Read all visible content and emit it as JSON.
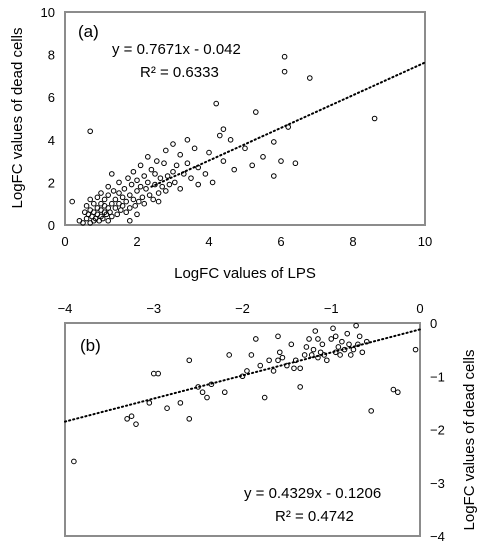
{
  "chart_data": [
    {
      "panel": "(a)",
      "type": "scatter",
      "xlabel": "LogFC values of LPS",
      "ylabel": "LogFC values of dead cells",
      "xlim": [
        0,
        10
      ],
      "ylim": [
        0,
        10
      ],
      "xticks": [
        0,
        2,
        4,
        6,
        8,
        10
      ],
      "yticks": [
        0,
        2,
        4,
        6,
        8,
        10
      ],
      "grid": false,
      "x_axis_position": "bottom",
      "y_axis_position": "left",
      "trendline": {
        "slope": 0.7671,
        "intercept": -0.042,
        "style": "dotted"
      },
      "equation": "y = 0.7671x - 0.042",
      "r_squared": "R² = 0.6333",
      "points": [
        [
          0.2,
          1.1
        ],
        [
          0.4,
          0.2
        ],
        [
          0.5,
          0.1
        ],
        [
          0.55,
          0.6
        ],
        [
          0.6,
          0.3
        ],
        [
          0.6,
          0.9
        ],
        [
          0.65,
          0.5
        ],
        [
          0.7,
          0.1
        ],
        [
          0.7,
          0.7
        ],
        [
          0.7,
          1.2
        ],
        [
          0.75,
          0.4
        ],
        [
          0.8,
          0.2
        ],
        [
          0.8,
          0.6
        ],
        [
          0.8,
          1.0
        ],
        [
          0.85,
          0.3
        ],
        [
          0.9,
          0.5
        ],
        [
          0.9,
          0.8
        ],
        [
          0.9,
          1.3
        ],
        [
          0.95,
          0.2
        ],
        [
          1.0,
          0.4
        ],
        [
          1.0,
          0.7
        ],
        [
          1.0,
          1.0
        ],
        [
          1.0,
          1.5
        ],
        [
          1.05,
          0.3
        ],
        [
          1.1,
          0.6
        ],
        [
          1.1,
          0.9
        ],
        [
          1.1,
          1.2
        ],
        [
          1.15,
          0.5
        ],
        [
          1.2,
          0.2
        ],
        [
          1.2,
          0.8
        ],
        [
          1.2,
          1.4
        ],
        [
          1.2,
          1.8
        ],
        [
          1.25,
          0.6
        ],
        [
          1.3,
          1.0
        ],
        [
          1.3,
          0.4
        ],
        [
          1.35,
          1.6
        ],
        [
          1.4,
          0.8
        ],
        [
          1.4,
          1.2
        ],
        [
          1.45,
          0.5
        ],
        [
          1.5,
          1.0
        ],
        [
          1.5,
          1.5
        ],
        [
          1.5,
          2.0
        ],
        [
          1.55,
          0.7
        ],
        [
          1.6,
          1.3
        ],
        [
          1.6,
          0.9
        ],
        [
          1.65,
          1.7
        ],
        [
          1.7,
          1.1
        ],
        [
          1.7,
          0.6
        ],
        [
          1.75,
          2.2
        ],
        [
          1.8,
          1.4
        ],
        [
          1.8,
          0.8
        ],
        [
          1.85,
          1.9
        ],
        [
          1.9,
          1.2
        ],
        [
          1.9,
          2.5
        ],
        [
          1.95,
          0.9
        ],
        [
          2.0,
          1.6
        ],
        [
          2.0,
          2.1
        ],
        [
          2.05,
          1.1
        ],
        [
          2.1,
          1.8
        ],
        [
          2.1,
          2.8
        ],
        [
          2.15,
          1.3
        ],
        [
          2.2,
          2.3
        ],
        [
          2.2,
          1.0
        ],
        [
          2.25,
          1.7
        ],
        [
          2.3,
          2.0
        ],
        [
          2.3,
          3.2
        ],
        [
          2.35,
          1.4
        ],
        [
          2.4,
          2.6
        ],
        [
          2.45,
          1.2
        ],
        [
          2.5,
          1.9
        ],
        [
          2.5,
          2.4
        ],
        [
          2.55,
          3.0
        ],
        [
          2.6,
          1.5
        ],
        [
          2.65,
          2.2
        ],
        [
          2.7,
          1.8
        ],
        [
          2.75,
          2.9
        ],
        [
          2.8,
          1.6
        ],
        [
          2.8,
          3.5
        ],
        [
          2.85,
          2.3
        ],
        [
          2.9,
          1.9
        ],
        [
          3.0,
          2.5
        ],
        [
          3.0,
          3.8
        ],
        [
          3.05,
          2.0
        ],
        [
          3.1,
          2.8
        ],
        [
          3.2,
          1.7
        ],
        [
          3.2,
          3.3
        ],
        [
          3.3,
          2.4
        ],
        [
          3.4,
          2.9
        ],
        [
          3.5,
          2.2
        ],
        [
          3.6,
          3.6
        ],
        [
          3.7,
          2.7
        ],
        [
          3.9,
          2.4
        ],
        [
          4.0,
          3.4
        ],
        [
          4.1,
          2.0
        ],
        [
          4.2,
          5.7
        ],
        [
          4.3,
          4.2
        ],
        [
          4.4,
          3.0
        ],
        [
          4.6,
          4.0
        ],
        [
          4.7,
          2.6
        ],
        [
          5.0,
          3.6
        ],
        [
          5.2,
          2.8
        ],
        [
          5.3,
          5.3
        ],
        [
          5.5,
          3.2
        ],
        [
          5.8,
          3.9
        ],
        [
          6.0,
          3.0
        ],
        [
          6.1,
          7.9
        ],
        [
          6.1,
          7.2
        ],
        [
          6.2,
          4.6
        ],
        [
          6.4,
          2.9
        ],
        [
          6.8,
          6.9
        ],
        [
          8.6,
          5.0
        ],
        [
          0.7,
          4.4
        ],
        [
          1.8,
          0.2
        ],
        [
          2.0,
          0.5
        ],
        [
          3.4,
          4.0
        ],
        [
          4.4,
          4.5
        ],
        [
          5.8,
          2.3
        ],
        [
          1.3,
          2.4
        ],
        [
          2.6,
          1.1
        ],
        [
          3.7,
          1.9
        ]
      ]
    },
    {
      "panel": "(b)",
      "type": "scatter",
      "xlabel": "",
      "ylabel": "LogFC values of dead cells",
      "xlim": [
        -4,
        0
      ],
      "ylim": [
        -4,
        0
      ],
      "xticks": [
        -4,
        -3,
        -2,
        -1,
        0
      ],
      "yticks": [
        -4,
        -3,
        -2,
        -1,
        0
      ],
      "grid": false,
      "x_axis_position": "top",
      "y_axis_position": "right",
      "trendline": {
        "slope": 0.4329,
        "intercept": -0.1206,
        "style": "dotted"
      },
      "equation": "y = 0.4329x - 0.1206",
      "r_squared": "R² = 0.4742",
      "points": [
        [
          -3.9,
          -2.6
        ],
        [
          -3.3,
          -1.8
        ],
        [
          -3.25,
          -1.75
        ],
        [
          -3.2,
          -1.9
        ],
        [
          -3.05,
          -1.5
        ],
        [
          -3.0,
          -0.95
        ],
        [
          -2.95,
          -0.95
        ],
        [
          -2.85,
          -1.6
        ],
        [
          -2.7,
          -1.5
        ],
        [
          -2.6,
          -1.8
        ],
        [
          -2.6,
          -0.7
        ],
        [
          -2.5,
          -1.2
        ],
        [
          -2.45,
          -1.3
        ],
        [
          -2.4,
          -1.4
        ],
        [
          -2.35,
          -1.15
        ],
        [
          -2.2,
          -1.3
        ],
        [
          -2.15,
          -0.6
        ],
        [
          -2.0,
          -1.0
        ],
        [
          -1.95,
          -0.9
        ],
        [
          -1.9,
          -0.6
        ],
        [
          -1.85,
          -0.3
        ],
        [
          -1.8,
          -0.8
        ],
        [
          -1.75,
          -1.4
        ],
        [
          -1.7,
          -0.7
        ],
        [
          -1.65,
          -0.9
        ],
        [
          -1.6,
          -0.25
        ],
        [
          -1.58,
          -0.55
        ],
        [
          -1.55,
          -0.65
        ],
        [
          -1.5,
          -0.8
        ],
        [
          -1.45,
          -0.4
        ],
        [
          -1.42,
          -0.85
        ],
        [
          -1.4,
          -0.7
        ],
        [
          -1.35,
          -1.2
        ],
        [
          -1.3,
          -0.6
        ],
        [
          -1.28,
          -0.45
        ],
        [
          -1.25,
          -0.3
        ],
        [
          -1.22,
          -0.6
        ],
        [
          -1.2,
          -0.5
        ],
        [
          -1.18,
          -0.15
        ],
        [
          -1.15,
          -0.65
        ],
        [
          -1.12,
          -0.55
        ],
        [
          -1.1,
          -0.4
        ],
        [
          -1.08,
          -0.6
        ],
        [
          -1.05,
          -0.7
        ],
        [
          -1.0,
          -0.3
        ],
        [
          -0.98,
          -0.1
        ],
        [
          -0.95,
          -0.55
        ],
        [
          -0.92,
          -0.45
        ],
        [
          -0.9,
          -0.6
        ],
        [
          -0.88,
          -0.35
        ],
        [
          -0.85,
          -0.5
        ],
        [
          -0.82,
          -0.2
        ],
        [
          -0.8,
          -0.4
        ],
        [
          -0.78,
          -0.6
        ],
        [
          -0.75,
          -0.5
        ],
        [
          -0.72,
          -0.05
        ],
        [
          -0.7,
          -0.4
        ],
        [
          -0.68,
          -0.25
        ],
        [
          -0.65,
          -0.55
        ],
        [
          -0.6,
          -0.35
        ],
        [
          -0.55,
          -1.65
        ],
        [
          -0.3,
          -1.25
        ],
        [
          -0.25,
          -1.3
        ],
        [
          -0.05,
          -0.5
        ],
        [
          -1.6,
          -0.7
        ],
        [
          -1.35,
          -0.85
        ],
        [
          -0.95,
          -0.25
        ],
        [
          -1.15,
          -0.3
        ]
      ]
    }
  ]
}
